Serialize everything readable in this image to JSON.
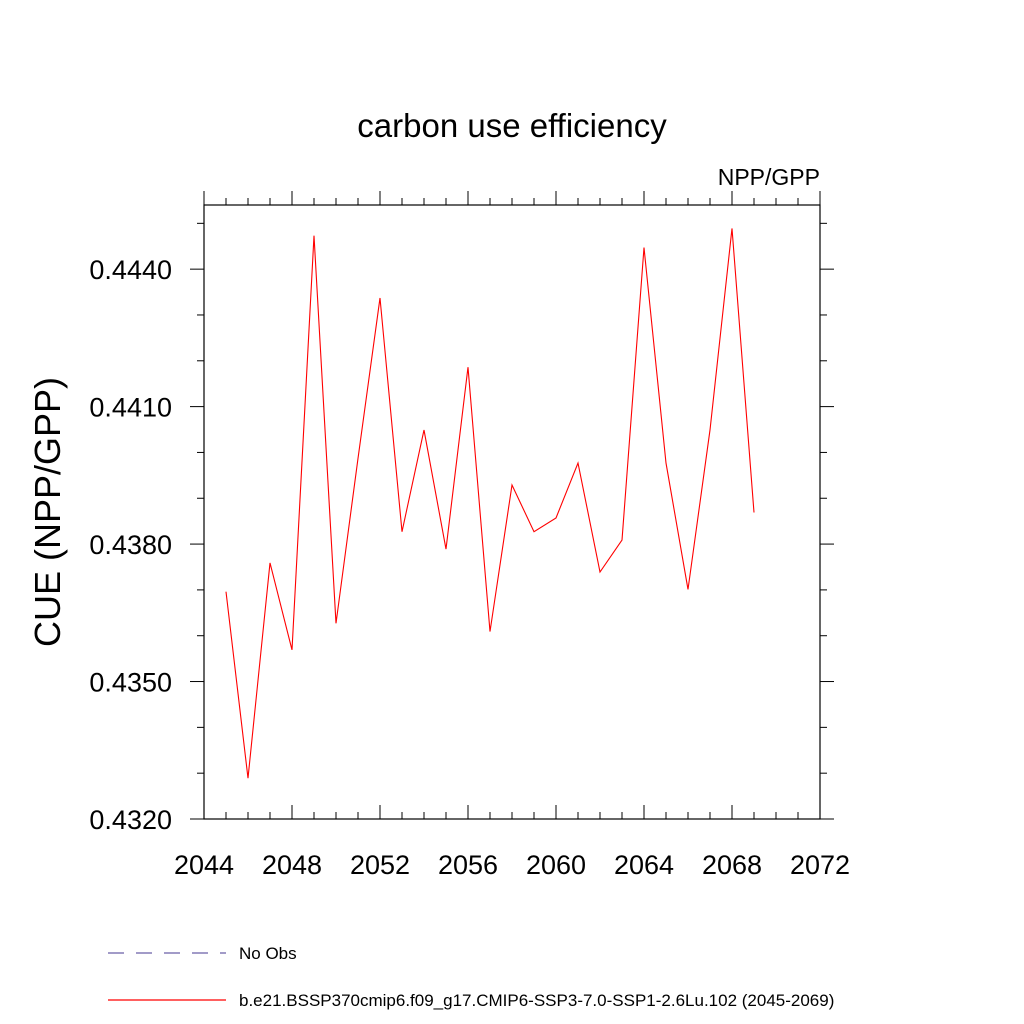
{
  "chart_data": {
    "type": "line",
    "title": "carbon use efficiency",
    "subtitle": "NPP/GPP",
    "xlabel": "",
    "ylabel": "CUE  (NPP/GPP)",
    "xlim": [
      2044,
      2072
    ],
    "ylim": [
      0.432,
      0.4454
    ],
    "x_ticks": [
      2044,
      2048,
      2052,
      2056,
      2060,
      2064,
      2068,
      2072
    ],
    "x_tick_labels": [
      "2044",
      "2048",
      "2052",
      "2056",
      "2060",
      "2064",
      "2068",
      "2072"
    ],
    "x_minor_step": 1,
    "y_ticks": [
      0.432,
      0.435,
      0.438,
      0.441,
      0.444
    ],
    "y_tick_labels": [
      "0.4320",
      "0.4350",
      "0.4380",
      "0.4410",
      "0.4440"
    ],
    "y_minor_step": 0.001,
    "grid": false,
    "series": [
      {
        "name": "b.e21.BSSP370cmip6.f09_g17.CMIP6-SSP3-7.0-SSP1-2.6Lu.102 (2045-2069)",
        "color": "#ff0000",
        "x": [
          2045,
          2046,
          2047,
          2048,
          2049,
          2050,
          2051,
          2052,
          2053,
          2054,
          2055,
          2056,
          2057,
          2058,
          2059,
          2060,
          2061,
          2062,
          2063,
          2064,
          2065,
          2066,
          2067,
          2068,
          2069
        ],
        "values": [
          0.43696,
          0.43289,
          0.43759,
          0.43569,
          0.44473,
          0.43627,
          0.43987,
          0.44337,
          0.43827,
          0.44049,
          0.43789,
          0.44186,
          0.43609,
          0.43929,
          0.43827,
          0.43857,
          0.43977,
          0.43739,
          0.43809,
          0.44447,
          0.43977,
          0.43701,
          0.44049,
          0.44489,
          0.43869
        ]
      }
    ],
    "legend": {
      "placement": "bottom",
      "entries": [
        {
          "label": "No Obs",
          "color": "#6b5fa8",
          "style": "dashed"
        },
        {
          "label": "b.e21.BSSP370cmip6.f09_g17.CMIP6-SSP3-7.0-SSP1-2.6Lu.102 (2045-2069)",
          "color": "#ff0000",
          "style": "solid"
        }
      ]
    }
  }
}
